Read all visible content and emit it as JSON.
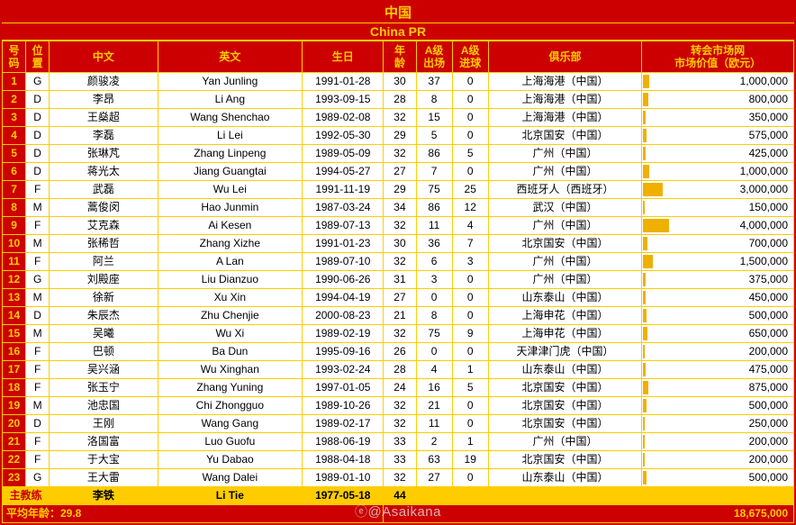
{
  "title_cn": "中国",
  "title_en": "China PR",
  "headers": {
    "num": "号\n码",
    "pos": "位\n置",
    "cn": "中文",
    "en": "英文",
    "bd": "生日",
    "age": "年\n龄",
    "apps": "A级\n出场",
    "goals": "A级\n进球",
    "club": "俱乐部",
    "val": "转会市场网\n市场价值（欧元）"
  },
  "max_value": 4000000,
  "bar_color": "#f0b000",
  "rows": [
    {
      "num": "1",
      "pos": "G",
      "cn": "颜骏凌",
      "en": "Yan Junling",
      "bd": "1991-01-28",
      "age": "30",
      "apps": "37",
      "goals": "0",
      "club": "上海海港（中国）",
      "val": "1,000,000",
      "vnum": 1000000
    },
    {
      "num": "2",
      "pos": "D",
      "cn": "李昂",
      "en": "Li Ang",
      "bd": "1993-09-15",
      "age": "28",
      "apps": "8",
      "goals": "0",
      "club": "上海海港（中国）",
      "val": "800,000",
      "vnum": 800000
    },
    {
      "num": "3",
      "pos": "D",
      "cn": "王燊超",
      "en": "Wang Shenchao",
      "bd": "1989-02-08",
      "age": "32",
      "apps": "15",
      "goals": "0",
      "club": "上海海港（中国）",
      "val": "350,000",
      "vnum": 350000
    },
    {
      "num": "4",
      "pos": "D",
      "cn": "李磊",
      "en": "Li Lei",
      "bd": "1992-05-30",
      "age": "29",
      "apps": "5",
      "goals": "0",
      "club": "北京国安（中国）",
      "val": "575,000",
      "vnum": 575000
    },
    {
      "num": "5",
      "pos": "D",
      "cn": "张琳芃",
      "en": "Zhang Linpeng",
      "bd": "1989-05-09",
      "age": "32",
      "apps": "86",
      "goals": "5",
      "club": "广州（中国）",
      "val": "425,000",
      "vnum": 425000
    },
    {
      "num": "6",
      "pos": "D",
      "cn": "蒋光太",
      "en": "Jiang Guangtai",
      "bd": "1994-05-27",
      "age": "27",
      "apps": "7",
      "goals": "0",
      "club": "广州（中国）",
      "val": "1,000,000",
      "vnum": 1000000
    },
    {
      "num": "7",
      "pos": "F",
      "cn": "武磊",
      "en": "Wu Lei",
      "bd": "1991-11-19",
      "age": "29",
      "apps": "75",
      "goals": "25",
      "club": "西班牙人（西班牙）",
      "val": "3,000,000",
      "vnum": 3000000
    },
    {
      "num": "8",
      "pos": "M",
      "cn": "蒿俊闵",
      "en": "Hao Junmin",
      "bd": "1987-03-24",
      "age": "34",
      "apps": "86",
      "goals": "12",
      "club": "武汉（中国）",
      "val": "150,000",
      "vnum": 150000
    },
    {
      "num": "9",
      "pos": "F",
      "cn": "艾克森",
      "en": "Ai Kesen",
      "bd": "1989-07-13",
      "age": "32",
      "apps": "11",
      "goals": "4",
      "club": "广州（中国）",
      "val": "4,000,000",
      "vnum": 4000000
    },
    {
      "num": "10",
      "pos": "M",
      "cn": "张稀哲",
      "en": "Zhang Xizhe",
      "bd": "1991-01-23",
      "age": "30",
      "apps": "36",
      "goals": "7",
      "club": "北京国安（中国）",
      "val": "700,000",
      "vnum": 700000
    },
    {
      "num": "11",
      "pos": "F",
      "cn": "阿兰",
      "en": "A Lan",
      "bd": "1989-07-10",
      "age": "32",
      "apps": "6",
      "goals": "3",
      "club": "广州（中国）",
      "val": "1,500,000",
      "vnum": 1500000
    },
    {
      "num": "12",
      "pos": "G",
      "cn": "刘殿座",
      "en": "Liu Dianzuo",
      "bd": "1990-06-26",
      "age": "31",
      "apps": "3",
      "goals": "0",
      "club": "广州（中国）",
      "val": "375,000",
      "vnum": 375000
    },
    {
      "num": "13",
      "pos": "M",
      "cn": "徐新",
      "en": "Xu Xin",
      "bd": "1994-04-19",
      "age": "27",
      "apps": "0",
      "goals": "0",
      "club": "山东泰山（中国）",
      "val": "450,000",
      "vnum": 450000
    },
    {
      "num": "14",
      "pos": "D",
      "cn": "朱辰杰",
      "en": "Zhu Chenjie",
      "bd": "2000-08-23",
      "age": "21",
      "apps": "8",
      "goals": "0",
      "club": "上海申花（中国）",
      "val": "500,000",
      "vnum": 500000
    },
    {
      "num": "15",
      "pos": "M",
      "cn": "吴曦",
      "en": "Wu Xi",
      "bd": "1989-02-19",
      "age": "32",
      "apps": "75",
      "goals": "9",
      "club": "上海申花（中国）",
      "val": "650,000",
      "vnum": 650000
    },
    {
      "num": "16",
      "pos": "F",
      "cn": "巴顿",
      "en": "Ba Dun",
      "bd": "1995-09-16",
      "age": "26",
      "apps": "0",
      "goals": "0",
      "club": "天津津门虎（中国）",
      "val": "200,000",
      "vnum": 200000
    },
    {
      "num": "17",
      "pos": "F",
      "cn": "吴兴涵",
      "en": "Wu Xinghan",
      "bd": "1993-02-24",
      "age": "28",
      "apps": "4",
      "goals": "1",
      "club": "山东泰山（中国）",
      "val": "475,000",
      "vnum": 475000
    },
    {
      "num": "18",
      "pos": "F",
      "cn": "张玉宁",
      "en": "Zhang Yuning",
      "bd": "1997-01-05",
      "age": "24",
      "apps": "16",
      "goals": "5",
      "club": "北京国安（中国）",
      "val": "875,000",
      "vnum": 875000
    },
    {
      "num": "19",
      "pos": "M",
      "cn": "池忠国",
      "en": "Chi Zhongguo",
      "bd": "1989-10-26",
      "age": "32",
      "apps": "21",
      "goals": "0",
      "club": "北京国安（中国）",
      "val": "500,000",
      "vnum": 500000
    },
    {
      "num": "20",
      "pos": "D",
      "cn": "王刚",
      "en": "Wang Gang",
      "bd": "1989-02-17",
      "age": "32",
      "apps": "11",
      "goals": "0",
      "club": "北京国安（中国）",
      "val": "250,000",
      "vnum": 250000
    },
    {
      "num": "21",
      "pos": "F",
      "cn": "洛国富",
      "en": "Luo Guofu",
      "bd": "1988-06-19",
      "age": "33",
      "apps": "2",
      "goals": "1",
      "club": "广州（中国）",
      "val": "200,000",
      "vnum": 200000
    },
    {
      "num": "22",
      "pos": "F",
      "cn": "于大宝",
      "en": "Yu Dabao",
      "bd": "1988-04-18",
      "age": "33",
      "apps": "63",
      "goals": "19",
      "club": "北京国安（中国）",
      "val": "200,000",
      "vnum": 200000
    },
    {
      "num": "23",
      "pos": "G",
      "cn": "王大雷",
      "en": "Wang Dalei",
      "bd": "1989-01-10",
      "age": "32",
      "apps": "27",
      "goals": "0",
      "club": "山东泰山（中国）",
      "val": "500,000",
      "vnum": 500000
    }
  ],
  "coach": {
    "label": "主教练",
    "cn": "李铁",
    "en": "Li Tie",
    "bd": "1977-05-18",
    "age": "44"
  },
  "footer": {
    "avg_age_label": "平均年龄：",
    "avg_age": "29.8",
    "total_value": "18,675,000"
  },
  "watermark": "@Asaikana"
}
